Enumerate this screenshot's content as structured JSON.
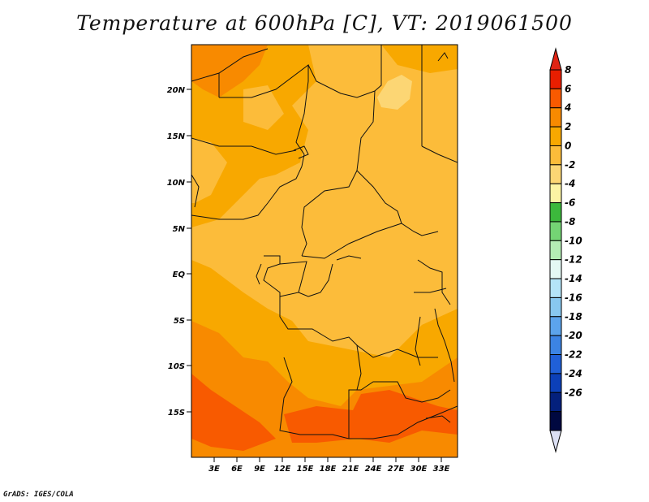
{
  "title": "Temperature at 600hPa [C], VT: 2019061500",
  "credit": "GrADS: IGES/COLA",
  "lat_labels": [
    "20N",
    "15N",
    "10N",
    "5N",
    "EQ",
    "5S",
    "10S",
    "15S"
  ],
  "lon_labels": [
    "3E",
    "6E",
    "9E",
    "12E",
    "15E",
    "18E",
    "21E",
    "24E",
    "27E",
    "30E",
    "33E"
  ],
  "colorbar": {
    "labels": [
      "8",
      "6",
      "4",
      "2",
      "0",
      "-2",
      "-4",
      "-6",
      "-8",
      "-10",
      "-12",
      "-14",
      "-16",
      "-18",
      "-20",
      "-22",
      "-24",
      "-26"
    ],
    "colors": [
      "#e81e00",
      "#f85a00",
      "#f88a00",
      "#f8a800",
      "#fcbc3a",
      "#fcd674",
      "#fcf4a4",
      "#3cb83c",
      "#74d474",
      "#b4ecb4",
      "#e4f8f4",
      "#b4e4f8",
      "#88c8f0",
      "#5ca4ec",
      "#3c84e4",
      "#2060d8",
      "#0c40b8",
      "#04207c",
      "#000840"
    ],
    "overflow_top": "#e02414",
    "underflow_bottom": "#dce0f4"
  },
  "map_colors": {
    "c_neg2_0": "#fcd674",
    "c_0_2": "#fcbc3a",
    "c_2_4": "#f8a800",
    "c_4_6": "#f88a00",
    "c_6_8": "#f85a00"
  }
}
